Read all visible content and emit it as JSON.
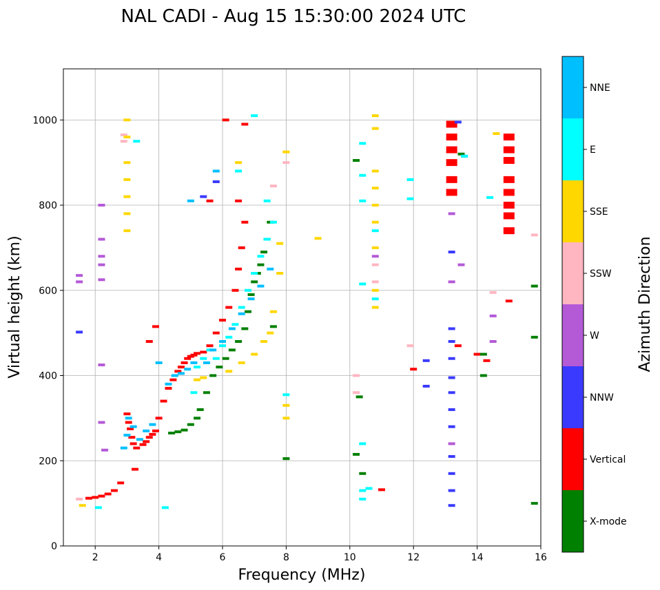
{
  "chart_data": {
    "type": "scatter",
    "title": "NAL CADI - Aug 15 15:30:00 2024 UTC",
    "xlabel": "Frequency (MHz)",
    "ylabel": "Virtual height (km)",
    "xlim": [
      1,
      16
    ],
    "ylim": [
      0,
      1120
    ],
    "xticks": [
      2,
      4,
      6,
      8,
      10,
      12,
      14,
      16
    ],
    "yticks": [
      0,
      200,
      400,
      600,
      800,
      1000
    ],
    "grid": true,
    "colorbar": {
      "label": "Azimuth Direction",
      "position": "right",
      "categories": [
        {
          "name": "X-mode",
          "color": "#008000"
        },
        {
          "name": "Vertical",
          "color": "#ff0000"
        },
        {
          "name": "NNW",
          "color": "#3a3aff"
        },
        {
          "name": "W",
          "color": "#b45ad7"
        },
        {
          "name": "SSW",
          "color": "#ffb6c1"
        },
        {
          "name": "SSE",
          "color": "#ffd700"
        },
        {
          "name": "E",
          "color": "#00ffff"
        },
        {
          "name": "NNE",
          "color": "#00bfff"
        }
      ]
    },
    "series": [
      {
        "name": "Vertical",
        "points": [
          [
            1.8,
            112
          ],
          [
            2.0,
            114
          ],
          [
            2.2,
            117
          ],
          [
            2.4,
            122
          ],
          [
            2.6,
            130
          ],
          [
            2.8,
            148
          ],
          [
            3.0,
            310
          ],
          [
            3.05,
            290
          ],
          [
            3.1,
            275
          ],
          [
            3.15,
            255
          ],
          [
            3.2,
            240
          ],
          [
            3.3,
            230
          ],
          [
            3.5,
            238
          ],
          [
            3.6,
            245
          ],
          [
            3.7,
            255
          ],
          [
            3.8,
            262
          ],
          [
            3.9,
            270
          ],
          [
            4.0,
            300
          ],
          [
            4.15,
            340
          ],
          [
            4.3,
            370
          ],
          [
            4.45,
            390
          ],
          [
            4.6,
            410
          ],
          [
            4.7,
            420
          ],
          [
            4.8,
            430
          ],
          [
            4.9,
            440
          ],
          [
            5.0,
            445
          ],
          [
            5.1,
            448
          ],
          [
            5.2,
            452
          ],
          [
            5.4,
            455
          ],
          [
            5.6,
            470
          ],
          [
            5.8,
            500
          ],
          [
            6.0,
            530
          ],
          [
            6.2,
            560
          ],
          [
            6.4,
            600
          ],
          [
            6.5,
            650
          ],
          [
            6.6,
            700
          ],
          [
            6.7,
            760
          ],
          [
            6.5,
            810
          ],
          [
            3.25,
            180
          ],
          [
            3.9,
            515
          ],
          [
            3.7,
            480
          ],
          [
            5.6,
            810
          ],
          [
            6.1,
            1000
          ],
          [
            6.7,
            990
          ],
          [
            11.0,
            132
          ],
          [
            12.0,
            415
          ],
          [
            13.4,
            470
          ],
          [
            14.0,
            450
          ],
          [
            14.3,
            435
          ],
          [
            15.0,
            575
          ]
        ]
      },
      {
        "name": "Vertical-column",
        "points": [
          [
            13.2,
            830
          ],
          [
            13.2,
            860
          ],
          [
            13.2,
            900
          ],
          [
            13.2,
            930
          ],
          [
            13.2,
            960
          ],
          [
            13.2,
            990
          ],
          [
            15.0,
            740
          ],
          [
            15.0,
            775
          ],
          [
            15.0,
            800
          ],
          [
            15.0,
            830
          ],
          [
            15.0,
            860
          ],
          [
            15.0,
            905
          ],
          [
            15.0,
            930
          ],
          [
            15.0,
            960
          ]
        ]
      },
      {
        "name": "X-mode",
        "points": [
          [
            4.4,
            265
          ],
          [
            4.6,
            268
          ],
          [
            4.8,
            272
          ],
          [
            5.0,
            285
          ],
          [
            5.2,
            300
          ],
          [
            5.3,
            320
          ],
          [
            5.5,
            360
          ],
          [
            5.7,
            400
          ],
          [
            5.9,
            420
          ],
          [
            6.1,
            440
          ],
          [
            6.3,
            460
          ],
          [
            6.5,
            480
          ],
          [
            6.7,
            510
          ],
          [
            6.8,
            550
          ],
          [
            6.9,
            590
          ],
          [
            7.0,
            620
          ],
          [
            7.1,
            640
          ],
          [
            7.2,
            660
          ],
          [
            7.3,
            690
          ],
          [
            7.4,
            720
          ],
          [
            7.5,
            760
          ],
          [
            7.6,
            515
          ],
          [
            8.0,
            205
          ],
          [
            10.2,
            215
          ],
          [
            10.3,
            350
          ],
          [
            10.4,
            170
          ],
          [
            10.2,
            905
          ],
          [
            13.5,
            920
          ],
          [
            14.2,
            400
          ],
          [
            14.2,
            450
          ],
          [
            15.8,
            610
          ],
          [
            15.8,
            490
          ],
          [
            15.8,
            100
          ]
        ]
      },
      {
        "name": "NNW",
        "points": [
          [
            1.5,
            502
          ],
          [
            13.2,
            95
          ],
          [
            13.2,
            130
          ],
          [
            13.2,
            170
          ],
          [
            13.2,
            210
          ],
          [
            13.2,
            280
          ],
          [
            13.2,
            320
          ],
          [
            13.2,
            360
          ],
          [
            13.2,
            395
          ],
          [
            13.2,
            440
          ],
          [
            13.2,
            480
          ],
          [
            13.2,
            510
          ],
          [
            13.2,
            690
          ],
          [
            13.4,
            995
          ],
          [
            12.4,
            375
          ],
          [
            12.4,
            435
          ],
          [
            13.6,
            915
          ],
          [
            5.4,
            820
          ],
          [
            5.8,
            855
          ]
        ]
      },
      {
        "name": "W",
        "points": [
          [
            1.5,
            620
          ],
          [
            1.5,
            635
          ],
          [
            2.2,
            425
          ],
          [
            2.2,
            290
          ],
          [
            2.2,
            625
          ],
          [
            2.2,
            660
          ],
          [
            2.2,
            680
          ],
          [
            2.2,
            720
          ],
          [
            2.2,
            800
          ],
          [
            13.2,
            240
          ],
          [
            13.2,
            780
          ],
          [
            13.2,
            620
          ],
          [
            13.5,
            660
          ],
          [
            14.5,
            480
          ],
          [
            14.5,
            540
          ],
          [
            10.8,
            680
          ],
          [
            2.3,
            225
          ]
        ]
      },
      {
        "name": "SSW",
        "points": [
          [
            1.5,
            110
          ],
          [
            2.9,
            965
          ],
          [
            2.9,
            950
          ],
          [
            10.8,
            620
          ],
          [
            10.8,
            660
          ],
          [
            11.9,
            470
          ],
          [
            14.5,
            595
          ],
          [
            15.8,
            730
          ],
          [
            10.2,
            400
          ],
          [
            10.2,
            360
          ],
          [
            8.0,
            900
          ],
          [
            7.6,
            845
          ]
        ]
      },
      {
        "name": "SSE",
        "points": [
          [
            1.6,
            95
          ],
          [
            3.0,
            1000
          ],
          [
            3.0,
            960
          ],
          [
            3.0,
            900
          ],
          [
            3.0,
            860
          ],
          [
            3.0,
            820
          ],
          [
            3.0,
            780
          ],
          [
            3.0,
            740
          ],
          [
            10.8,
            560
          ],
          [
            10.8,
            600
          ],
          [
            10.8,
            700
          ],
          [
            10.8,
            760
          ],
          [
            10.8,
            800
          ],
          [
            10.8,
            840
          ],
          [
            10.8,
            880
          ],
          [
            10.8,
            980
          ],
          [
            10.8,
            1010
          ],
          [
            9.0,
            722
          ],
          [
            14.6,
            968
          ],
          [
            5.2,
            390
          ],
          [
            5.4,
            395
          ],
          [
            6.2,
            410
          ],
          [
            6.6,
            430
          ],
          [
            7.0,
            450
          ],
          [
            7.3,
            480
          ],
          [
            7.5,
            500
          ],
          [
            7.6,
            550
          ],
          [
            7.8,
            640
          ],
          [
            7.8,
            710
          ],
          [
            8.0,
            925
          ],
          [
            8.0,
            300
          ],
          [
            8.0,
            330
          ],
          [
            6.5,
            900
          ]
        ]
      },
      {
        "name": "E",
        "points": [
          [
            4.2,
            90
          ],
          [
            2.1,
            90
          ],
          [
            3.3,
            950
          ],
          [
            5.1,
            360
          ],
          [
            5.2,
            420
          ],
          [
            5.4,
            440
          ],
          [
            5.6,
            460
          ],
          [
            5.8,
            440
          ],
          [
            6.0,
            470
          ],
          [
            6.2,
            490
          ],
          [
            6.4,
            520
          ],
          [
            6.6,
            560
          ],
          [
            6.8,
            600
          ],
          [
            7.0,
            640
          ],
          [
            7.2,
            680
          ],
          [
            7.4,
            720
          ],
          [
            7.6,
            760
          ],
          [
            6.5,
            880
          ],
          [
            7.0,
            1010
          ],
          [
            10.4,
            130
          ],
          [
            10.4,
            110
          ],
          [
            10.4,
            240
          ],
          [
            10.4,
            615
          ],
          [
            10.4,
            810
          ],
          [
            10.4,
            870
          ],
          [
            10.4,
            945
          ],
          [
            10.6,
            135
          ],
          [
            10.8,
            580
          ],
          [
            10.8,
            740
          ],
          [
            11.9,
            860
          ],
          [
            11.9,
            815
          ],
          [
            14.4,
            818
          ],
          [
            13.6,
            915
          ],
          [
            8.0,
            355
          ],
          [
            7.4,
            810
          ]
        ]
      },
      {
        "name": "NNE",
        "points": [
          [
            2.9,
            230
          ],
          [
            3.0,
            260
          ],
          [
            3.05,
            300
          ],
          [
            3.2,
            280
          ],
          [
            3.4,
            250
          ],
          [
            3.6,
            270
          ],
          [
            3.8,
            285
          ],
          [
            4.0,
            430
          ],
          [
            4.3,
            380
          ],
          [
            4.5,
            400
          ],
          [
            4.7,
            405
          ],
          [
            4.9,
            415
          ],
          [
            5.1,
            430
          ],
          [
            5.5,
            430
          ],
          [
            5.7,
            460
          ],
          [
            6.0,
            480
          ],
          [
            6.3,
            510
          ],
          [
            6.6,
            545
          ],
          [
            6.9,
            580
          ],
          [
            7.2,
            610
          ],
          [
            7.5,
            650
          ],
          [
            5.8,
            880
          ],
          [
            5.0,
            810
          ]
        ]
      }
    ]
  }
}
